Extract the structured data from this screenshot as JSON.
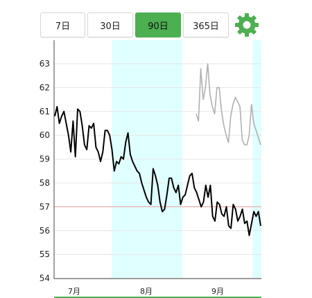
{
  "tabs": [
    {
      "label": "7日",
      "active": false
    },
    {
      "label": "30日",
      "active": false
    },
    {
      "label": "90日",
      "active": true
    },
    {
      "label": "365日",
      "active": false
    }
  ],
  "settings_icon": "gear-icon",
  "colors": {
    "accent": "#4caf50",
    "highlight_band": "#e0ffff",
    "target_line": "#e9a0a0",
    "main_series": "#000000",
    "secondary_series": "#b0b0b0"
  },
  "chart_data": {
    "type": "line",
    "ylim": [
      54,
      63.8
    ],
    "yticks": [
      63,
      62,
      61,
      60,
      59,
      58,
      57,
      56,
      55,
      54
    ],
    "xlabels": [
      "7月",
      "8月",
      "9月"
    ],
    "target_value": 57,
    "grid": true,
    "series": [
      {
        "values": [
          60.8,
          61.2,
          60.5,
          60.8,
          61.0,
          60.5,
          60.0,
          59.3,
          60.6,
          59.1,
          61.1,
          61.0,
          60.4,
          59.6,
          59.4,
          60.4,
          60.3,
          60.5,
          59.5,
          59.3,
          58.9,
          59.3,
          60.2,
          60.2,
          60.0,
          59.4,
          58.5,
          58.9,
          58.8,
          59.1,
          59.0,
          59.7,
          60.1,
          59.2,
          58.9,
          58.7,
          58.5,
          58.4,
          58.0,
          57.7,
          57.4,
          57.2,
          57.1,
          58.6,
          58.3,
          57.9,
          57.2,
          56.8,
          56.9,
          57.5,
          58.2,
          58.2,
          57.8,
          57.6,
          57.9,
          57.1,
          57.4,
          57.5,
          57.9,
          58.3,
          58.4,
          57.8,
          57.6,
          57.3,
          57.0,
          57.2,
          57.9,
          57.4,
          57.9,
          56.6,
          56.4,
          57.2,
          57.1,
          56.7,
          56.6,
          57.0,
          56.2,
          56.1,
          57.1,
          56.9,
          56.4,
          56.6,
          56.9,
          56.3,
          56.4,
          55.8,
          56.3,
          56.8,
          56.6,
          56.8,
          56.2
        ]
      },
      {
        "values": [
          60.9,
          60.6,
          62.8,
          61.5,
          62.0,
          63.0,
          61.7,
          61.2,
          60.9,
          62.0,
          62.0,
          61.0,
          60.4,
          60.0,
          59.7,
          60.8,
          61.3,
          61.6,
          61.4,
          61.2,
          59.8,
          59.6,
          59.6,
          60.0,
          61.3,
          60.5,
          60.2,
          59.9,
          59.6
        ]
      }
    ]
  }
}
